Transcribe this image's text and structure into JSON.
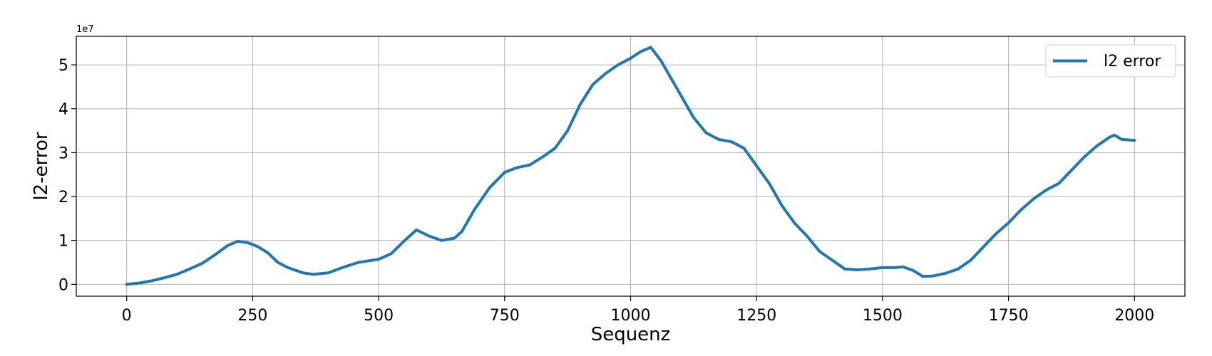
{
  "chart_data": {
    "type": "line",
    "xlabel": "Sequenz",
    "ylabel": "l2-error",
    "y_offset_label": "1e7",
    "xlim": [
      -100,
      2100
    ],
    "ylim": [
      -2700000,
      56500000
    ],
    "x_ticks": [
      0,
      250,
      500,
      750,
      1000,
      1250,
      1500,
      1750,
      2000
    ],
    "x_tick_labels": [
      "0",
      "250",
      "500",
      "750",
      "1000",
      "1250",
      "1500",
      "1750",
      "2000"
    ],
    "y_ticks": [
      0,
      10000000,
      20000000,
      30000000,
      40000000,
      50000000
    ],
    "y_tick_labels": [
      "0",
      "1",
      "2",
      "3",
      "4",
      "5"
    ],
    "grid": true,
    "legend_position": "top-right",
    "series": [
      {
        "name": "l2 error",
        "color": "#1f77b4",
        "x": [
          0,
          25,
          50,
          75,
          100,
          125,
          150,
          175,
          200,
          220,
          240,
          260,
          280,
          300,
          320,
          350,
          370,
          400,
          430,
          460,
          500,
          525,
          550,
          575,
          600,
          625,
          650,
          665,
          690,
          720,
          750,
          775,
          800,
          825,
          850,
          875,
          900,
          925,
          950,
          975,
          1000,
          1020,
          1040,
          1060,
          1080,
          1100,
          1125,
          1150,
          1175,
          1200,
          1225,
          1250,
          1275,
          1300,
          1325,
          1350,
          1375,
          1400,
          1425,
          1450,
          1475,
          1500,
          1525,
          1540,
          1560,
          1580,
          1600,
          1625,
          1650,
          1675,
          1700,
          1725,
          1750,
          1775,
          1800,
          1825,
          1850,
          1875,
          1900,
          1925,
          1950,
          1960,
          1975,
          2000
        ],
        "y": [
          0,
          300000,
          800000,
          1500000,
          2300000,
          3500000,
          4800000,
          6700000,
          8800000,
          9800000,
          9500000,
          8600000,
          7200000,
          5000000,
          3800000,
          2600000,
          2300000,
          2600000,
          3900000,
          5000000,
          5700000,
          7000000,
          9800000,
          12400000,
          11000000,
          10000000,
          10500000,
          12000000,
          17000000,
          22000000,
          25500000,
          26600000,
          27200000,
          29000000,
          31000000,
          35000000,
          41000000,
          45500000,
          48000000,
          50000000,
          51500000,
          53000000,
          54000000,
          51000000,
          47000000,
          43000000,
          38000000,
          34500000,
          33000000,
          32500000,
          31000000,
          27000000,
          23000000,
          18000000,
          14000000,
          11000000,
          7500000,
          5500000,
          3500000,
          3300000,
          3500000,
          3800000,
          3800000,
          4000000,
          3200000,
          1800000,
          1900000,
          2500000,
          3500000,
          5500000,
          8500000,
          11500000,
          14000000,
          17000000,
          19500000,
          21500000,
          23000000,
          26000000,
          29000000,
          31500000,
          33500000,
          34000000,
          33000000,
          32800000
        ]
      }
    ]
  }
}
